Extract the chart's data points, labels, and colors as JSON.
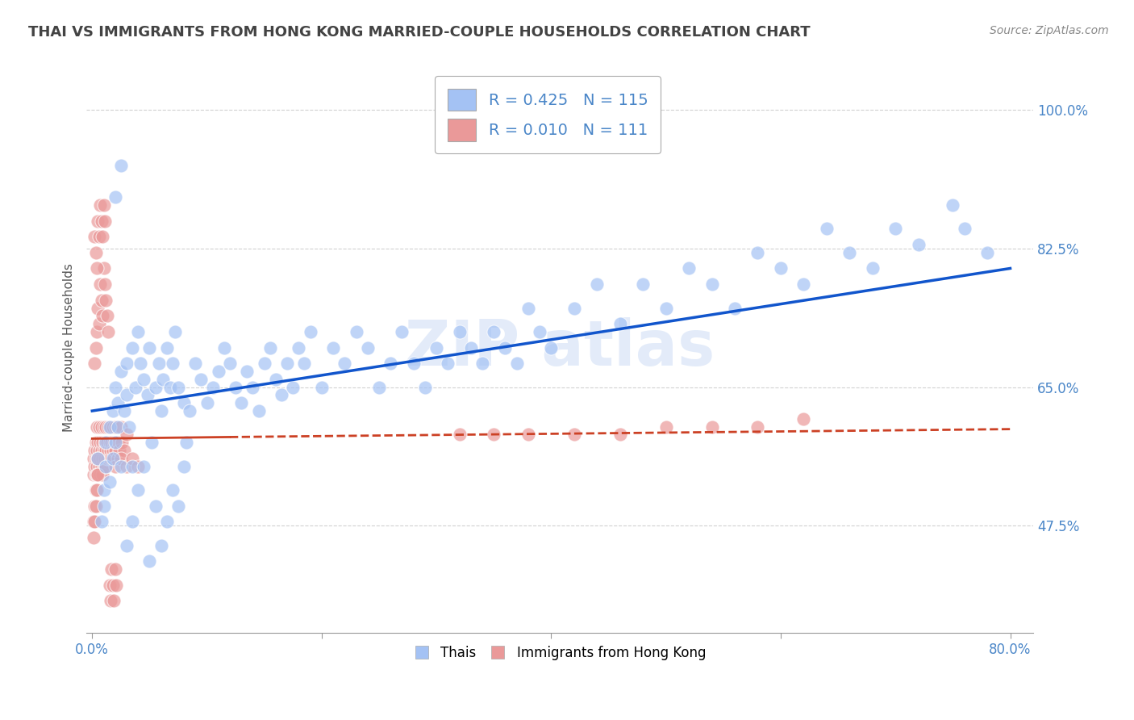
{
  "title": "THAI VS IMMIGRANTS FROM HONG KONG MARRIED-COUPLE HOUSEHOLDS CORRELATION CHART",
  "source": "Source: ZipAtlas.com",
  "ylabel": "Married-couple Households",
  "xlim": [
    -0.005,
    0.82
  ],
  "ylim": [
    0.34,
    1.06
  ],
  "x_ticks": [
    0.0,
    0.2,
    0.4,
    0.6,
    0.8
  ],
  "x_tick_labels": [
    "0.0%",
    "",
    "",
    "",
    "80.0%"
  ],
  "y_ticks": [
    0.475,
    0.65,
    0.825,
    1.0
  ],
  "y_tick_labels": [
    "47.5%",
    "65.0%",
    "82.5%",
    "100.0%"
  ],
  "watermark": "ZIP atlas",
  "legend_entry1": "R = 0.425   N = 115",
  "legend_entry2": "R = 0.010   N = 111",
  "legend_label1": "Thais",
  "legend_label2": "Immigrants from Hong Kong",
  "blue_color": "#a4c2f4",
  "pink_color": "#ea9999",
  "blue_line_color": "#1155cc",
  "pink_line_color": "#cc4125",
  "title_color": "#434343",
  "axis_color": "#4a86c8",
  "blue_scatter_x": [
    0.005,
    0.008,
    0.01,
    0.01,
    0.012,
    0.012,
    0.015,
    0.015,
    0.018,
    0.018,
    0.02,
    0.02,
    0.022,
    0.022,
    0.025,
    0.025,
    0.028,
    0.03,
    0.03,
    0.032,
    0.035,
    0.035,
    0.038,
    0.04,
    0.042,
    0.045,
    0.048,
    0.05,
    0.052,
    0.055,
    0.058,
    0.06,
    0.062,
    0.065,
    0.068,
    0.07,
    0.072,
    0.075,
    0.08,
    0.082,
    0.085,
    0.09,
    0.095,
    0.1,
    0.105,
    0.11,
    0.115,
    0.12,
    0.125,
    0.13,
    0.135,
    0.14,
    0.145,
    0.15,
    0.155,
    0.16,
    0.165,
    0.17,
    0.175,
    0.18,
    0.185,
    0.19,
    0.2,
    0.21,
    0.22,
    0.23,
    0.24,
    0.25,
    0.26,
    0.27,
    0.28,
    0.29,
    0.3,
    0.31,
    0.32,
    0.33,
    0.34,
    0.35,
    0.36,
    0.37,
    0.38,
    0.39,
    0.4,
    0.42,
    0.44,
    0.46,
    0.48,
    0.5,
    0.52,
    0.54,
    0.56,
    0.58,
    0.6,
    0.62,
    0.64,
    0.66,
    0.68,
    0.7,
    0.72,
    0.75,
    0.76,
    0.78,
    0.02,
    0.025,
    0.03,
    0.035,
    0.04,
    0.045,
    0.05,
    0.055,
    0.06,
    0.065,
    0.07,
    0.075,
    0.08
  ],
  "blue_scatter_y": [
    0.56,
    0.48,
    0.5,
    0.52,
    0.55,
    0.58,
    0.53,
    0.6,
    0.56,
    0.62,
    0.58,
    0.65,
    0.6,
    0.63,
    0.55,
    0.67,
    0.62,
    0.68,
    0.64,
    0.6,
    0.55,
    0.7,
    0.65,
    0.72,
    0.68,
    0.66,
    0.64,
    0.7,
    0.58,
    0.65,
    0.68,
    0.62,
    0.66,
    0.7,
    0.65,
    0.68,
    0.72,
    0.65,
    0.63,
    0.58,
    0.62,
    0.68,
    0.66,
    0.63,
    0.65,
    0.67,
    0.7,
    0.68,
    0.65,
    0.63,
    0.67,
    0.65,
    0.62,
    0.68,
    0.7,
    0.66,
    0.64,
    0.68,
    0.65,
    0.7,
    0.68,
    0.72,
    0.65,
    0.7,
    0.68,
    0.72,
    0.7,
    0.65,
    0.68,
    0.72,
    0.68,
    0.65,
    0.7,
    0.68,
    0.72,
    0.7,
    0.68,
    0.72,
    0.7,
    0.68,
    0.75,
    0.72,
    0.7,
    0.75,
    0.78,
    0.73,
    0.78,
    0.75,
    0.8,
    0.78,
    0.75,
    0.82,
    0.8,
    0.78,
    0.85,
    0.82,
    0.8,
    0.85,
    0.83,
    0.88,
    0.85,
    0.82,
    0.89,
    0.93,
    0.45,
    0.48,
    0.52,
    0.55,
    0.43,
    0.5,
    0.45,
    0.48,
    0.52,
    0.5,
    0.55
  ],
  "pink_scatter_x": [
    0.001,
    0.001,
    0.002,
    0.002,
    0.003,
    0.003,
    0.003,
    0.004,
    0.004,
    0.004,
    0.005,
    0.005,
    0.005,
    0.006,
    0.006,
    0.006,
    0.007,
    0.007,
    0.007,
    0.008,
    0.008,
    0.008,
    0.009,
    0.009,
    0.009,
    0.01,
    0.01,
    0.01,
    0.011,
    0.011,
    0.012,
    0.012,
    0.012,
    0.013,
    0.013,
    0.014,
    0.014,
    0.015,
    0.015,
    0.016,
    0.016,
    0.017,
    0.017,
    0.018,
    0.018,
    0.019,
    0.019,
    0.02,
    0.02,
    0.021,
    0.022,
    0.023,
    0.024,
    0.025,
    0.026,
    0.028,
    0.03,
    0.002,
    0.003,
    0.004,
    0.005,
    0.006,
    0.007,
    0.008,
    0.009,
    0.01,
    0.011,
    0.012,
    0.013,
    0.014,
    0.002,
    0.003,
    0.004,
    0.005,
    0.006,
    0.007,
    0.008,
    0.009,
    0.01,
    0.011,
    0.001,
    0.001,
    0.002,
    0.002,
    0.003,
    0.003,
    0.004,
    0.004,
    0.005,
    0.005,
    0.32,
    0.35,
    0.38,
    0.42,
    0.46,
    0.5,
    0.54,
    0.58,
    0.62,
    0.02,
    0.025,
    0.03,
    0.035,
    0.04,
    0.015,
    0.016,
    0.017,
    0.018,
    0.019,
    0.02,
    0.021
  ],
  "pink_scatter_y": [
    0.56,
    0.54,
    0.57,
    0.55,
    0.58,
    0.56,
    0.54,
    0.6,
    0.57,
    0.55,
    0.58,
    0.56,
    0.54,
    0.6,
    0.57,
    0.55,
    0.58,
    0.56,
    0.54,
    0.6,
    0.57,
    0.55,
    0.58,
    0.56,
    0.54,
    0.6,
    0.57,
    0.55,
    0.58,
    0.56,
    0.6,
    0.57,
    0.55,
    0.58,
    0.56,
    0.6,
    0.57,
    0.58,
    0.56,
    0.6,
    0.57,
    0.58,
    0.56,
    0.6,
    0.57,
    0.58,
    0.56,
    0.6,
    0.57,
    0.58,
    0.56,
    0.58,
    0.57,
    0.6,
    0.58,
    0.57,
    0.59,
    0.68,
    0.7,
    0.72,
    0.75,
    0.73,
    0.78,
    0.76,
    0.74,
    0.8,
    0.78,
    0.76,
    0.74,
    0.72,
    0.84,
    0.82,
    0.8,
    0.86,
    0.84,
    0.88,
    0.86,
    0.84,
    0.88,
    0.86,
    0.48,
    0.46,
    0.5,
    0.48,
    0.52,
    0.5,
    0.54,
    0.52,
    0.56,
    0.54,
    0.59,
    0.59,
    0.59,
    0.59,
    0.59,
    0.6,
    0.6,
    0.6,
    0.61,
    0.55,
    0.56,
    0.55,
    0.56,
    0.55,
    0.4,
    0.38,
    0.42,
    0.4,
    0.38,
    0.42,
    0.4
  ],
  "blue_line_x": [
    0.0,
    0.8
  ],
  "blue_line_y": [
    0.62,
    0.8
  ],
  "pink_line_x": [
    0.0,
    0.6
  ],
  "pink_line_y": [
    0.585,
    0.595
  ]
}
